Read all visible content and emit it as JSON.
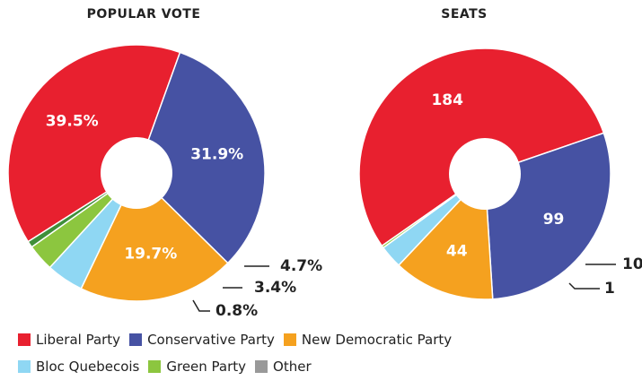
{
  "chart_data": [
    {
      "type": "pie",
      "variant": "donut",
      "title": "POPULAR VOTE",
      "categories": [
        "Liberal Party",
        "Conservative Party",
        "New Democratic Party",
        "Bloc Quebecois",
        "Green Party",
        "Other"
      ],
      "values": [
        39.5,
        31.9,
        19.7,
        4.7,
        3.4,
        0.8
      ],
      "data_labels": [
        "39.5%",
        "31.9%",
        "19.7%",
        "4.7%",
        "3.4%",
        "0.8%"
      ],
      "colors": [
        "#e8202f",
        "#4652a3",
        "#f5a11f",
        "#8fd7f3",
        "#8cc63f",
        "#3f8f3a"
      ]
    },
    {
      "type": "pie",
      "variant": "donut",
      "title": "SEATS",
      "categories": [
        "Liberal Party",
        "Conservative Party",
        "New Democratic Party",
        "Bloc Quebecois",
        "Green Party",
        "Other"
      ],
      "values": [
        184,
        99,
        44,
        10,
        1,
        0
      ],
      "data_labels": [
        "184",
        "99",
        "44",
        "10",
        "1",
        ""
      ],
      "colors": [
        "#e8202f",
        "#4652a3",
        "#f5a11f",
        "#8fd7f3",
        "#8cc63f",
        "#999999"
      ]
    }
  ],
  "legend": {
    "rows": [
      [
        {
          "label": "Liberal Party",
          "color": "#e8202f"
        },
        {
          "label": "Conservative Party",
          "color": "#4652a3"
        },
        {
          "label": "New Democratic Party",
          "color": "#f5a11f"
        }
      ],
      [
        {
          "label": "Bloc Quebecois",
          "color": "#8fd7f3"
        },
        {
          "label": "Green Party",
          "color": "#8cc63f"
        },
        {
          "label": "Other",
          "color": "#999999"
        }
      ]
    ]
  }
}
